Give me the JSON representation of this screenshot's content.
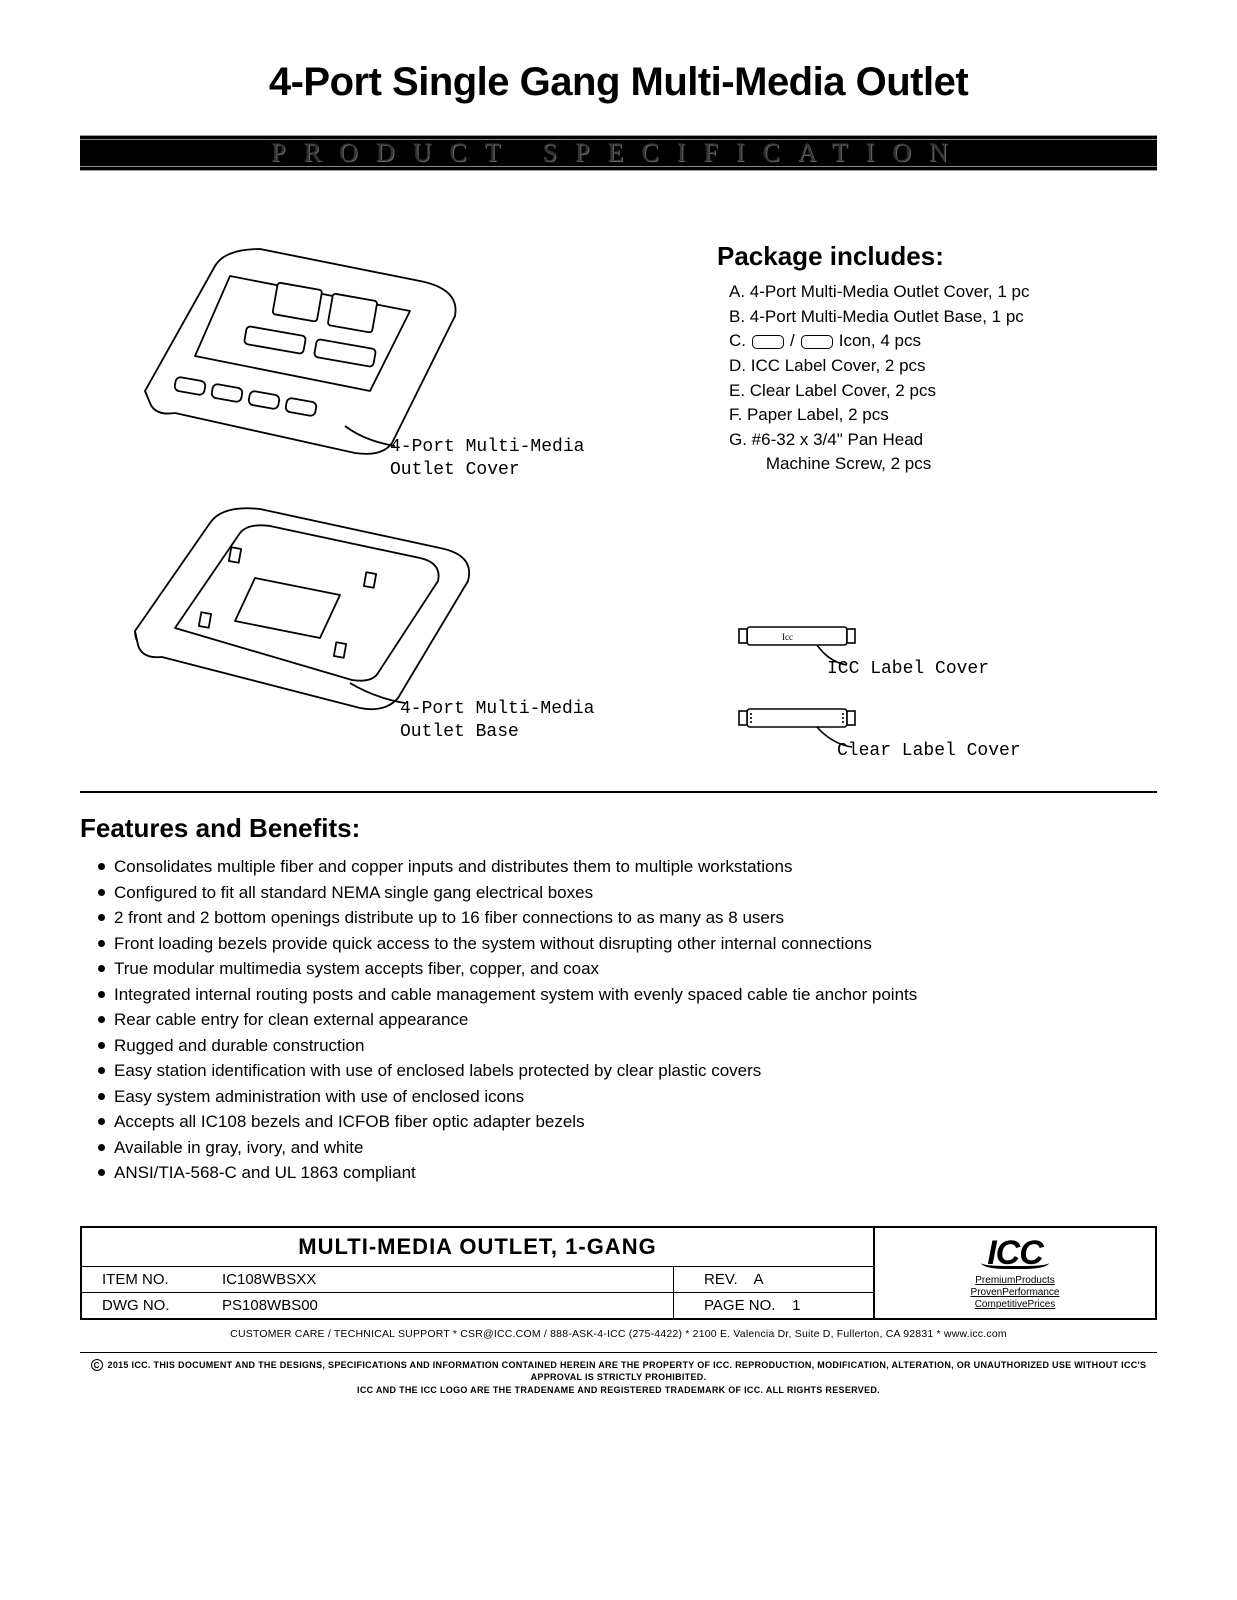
{
  "title": "4-Port Single Gang Multi-Media Outlet",
  "specbar": "PRODUCT  SPECIFICATION",
  "diagram_cover_caption_l1": "4-Port Multi-Media",
  "diagram_cover_caption_l2": "Outlet Cover",
  "diagram_base_caption_l1": "4-Port Multi-Media",
  "diagram_base_caption_l2": "Outlet Base",
  "pkg_heading": "Package includes:",
  "pkg": {
    "a": "A. 4-Port Multi-Media Outlet Cover, 1 pc",
    "b": "B. 4-Port Multi-Media Outlet Base, 1 pc",
    "c_pre": "C.",
    "c_post": "Icon, 4 pcs",
    "d": "D. ICC Label Cover, 2 pcs",
    "e": "E. Clear Label Cover, 2 pcs",
    "f": "F. Paper Label, 2 pcs",
    "g1": "G. #6-32 x 3/4\" Pan Head",
    "g2": "    Machine Screw, 2 pcs"
  },
  "label_icc": "ICC Label Cover",
  "label_clear": "Clear Label Cover",
  "features_heading": "Features and Benefits:",
  "features": [
    "Consolidates multiple fiber and copper inputs and distributes them to multiple workstations",
    "Configured to fit all standard NEMA single gang electrical boxes",
    "2 front and 2 bottom openings distribute up to 16 fiber connections to as many as 8 users",
    "Front loading bezels provide quick access to the system without disrupting other internal connections",
    "True modular multimedia system accepts fiber, copper, and coax",
    "Integrated internal routing posts and cable management system with evenly spaced cable tie anchor points",
    "Rear cable entry for clean external appearance",
    "Rugged and durable construction",
    "Easy station identification with use of enclosed labels protected by clear plastic covers",
    "Easy system administration with use of enclosed icons",
    "Accepts all IC108 bezels and ICFOB fiber optic adapter bezels",
    "Available in gray, ivory, and white",
    "ANSI/TIA-568-C and UL 1863 compliant"
  ],
  "tb": {
    "name": "MULTI-MEDIA OUTLET, 1-GANG",
    "item_label": "ITEM NO.",
    "item_val": "IC108WBSXX",
    "rev_label": "REV.",
    "rev_val": "A",
    "dwg_label": "DWG NO.",
    "dwg_val": "PS108WBS00",
    "page_label": "PAGE NO.",
    "page_val": "1"
  },
  "logo": "ICC",
  "tag1": "PremiumProducts",
  "tag2": "ProvenPerformance",
  "tag3": "CompetitivePrices",
  "footer_contact": "CUSTOMER CARE / TECHNICAL SUPPORT * CSR@ICC.COM / 888-ASK-4-ICC (275-4422) * 2100 E. Valencia Dr, Suite D, Fullerton, CA 92831 * www.icc.com",
  "footer_legal_1": "2015 ICC. THIS DOCUMENT AND THE DESIGNS, SPECIFICATIONS AND INFORMATION CONTAINED HEREIN ARE THE PROPERTY OF ICC. REPRODUCTION, MODIFICATION, ALTERATION, OR UNAUTHORIZED USE WITHOUT ICC'S APPROVAL IS STRICTLY PROHIBITED.",
  "footer_legal_2": "ICC AND THE ICC LOGO ARE THE TRADENAME AND REGISTERED TRADEMARK OF ICC. ALL RIGHTS RESERVED.",
  "colors": {
    "text": "#000000",
    "bg": "#ffffff",
    "bar": "#000000",
    "bar_text": "#333333"
  }
}
